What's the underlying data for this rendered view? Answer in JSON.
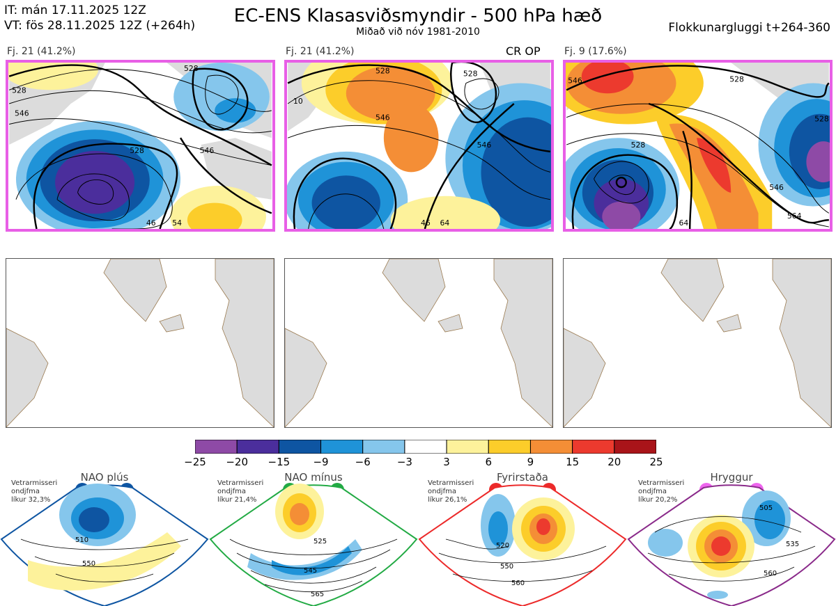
{
  "header": {
    "it_line": "IT: mán 17.11.2025 12Z",
    "vt_line": "VT: fös 28.11.2025 12Z  (+264h)",
    "title": "EC-ENS Klasasviðsmyndir - 500 hPa hæð",
    "subtitle": "Miðað við nóv 1981-2010",
    "window": "Flokkunargluggi t+264-360"
  },
  "panels": [
    {
      "label": "Fj. 21 (41.2%)",
      "extra": ""
    },
    {
      "label": "Fj. 21 (41.2%)",
      "extra": "CR OP"
    },
    {
      "label": "Fj. 9 (17.6%)",
      "extra": ""
    }
  ],
  "contour_labels": {
    "p1": [
      "528",
      "546",
      "528",
      "546",
      "528",
      "46",
      "54"
    ],
    "p2": [
      "528",
      "546",
      "528",
      "546",
      "10",
      "46",
      "64"
    ],
    "p3": [
      "546",
      "528",
      "528",
      "528",
      "546",
      "564",
      "64"
    ]
  },
  "colorbar": {
    "ticks": [
      "−25",
      "−20",
      "−15",
      "−9",
      "−6",
      "−3",
      "3",
      "6",
      "9",
      "15",
      "20",
      "25"
    ],
    "colors": [
      "#8e4aa6",
      "#4b2e9c",
      "#0e55a2",
      "#1f93d8",
      "#85c6ec",
      "#ffffff",
      "#fdf29b",
      "#fccd2a",
      "#f48e36",
      "#ec3a2e",
      "#a91419"
    ]
  },
  "regimes": [
    {
      "title": "NAO plús",
      "stats": [
        "Vetrarmisseri",
        "ondjfma",
        "líkur 32,3%"
      ],
      "color": "#0e55a2",
      "contours": [
        "510",
        "550"
      ]
    },
    {
      "title": "NAO mínus",
      "stats": [
        "Vetrarmisseri",
        "ondjfma",
        "líkur 21,4%"
      ],
      "color": "#22aa44",
      "contours": [
        "525",
        "545",
        "565"
      ]
    },
    {
      "title": "Fyrirstaða",
      "stats": [
        "Vetrarmisseri",
        "ondjfma",
        "líkur 26,1%"
      ],
      "color": "#ec2a2a",
      "contours": [
        "520",
        "550",
        "560"
      ]
    },
    {
      "title": "Hryggur",
      "stats": [
        "Vetrarmisseri",
        "ondjfma",
        "líkur 20,2%"
      ],
      "color": "#ee66ee",
      "contours": [
        "505",
        "535",
        "560"
      ]
    }
  ]
}
